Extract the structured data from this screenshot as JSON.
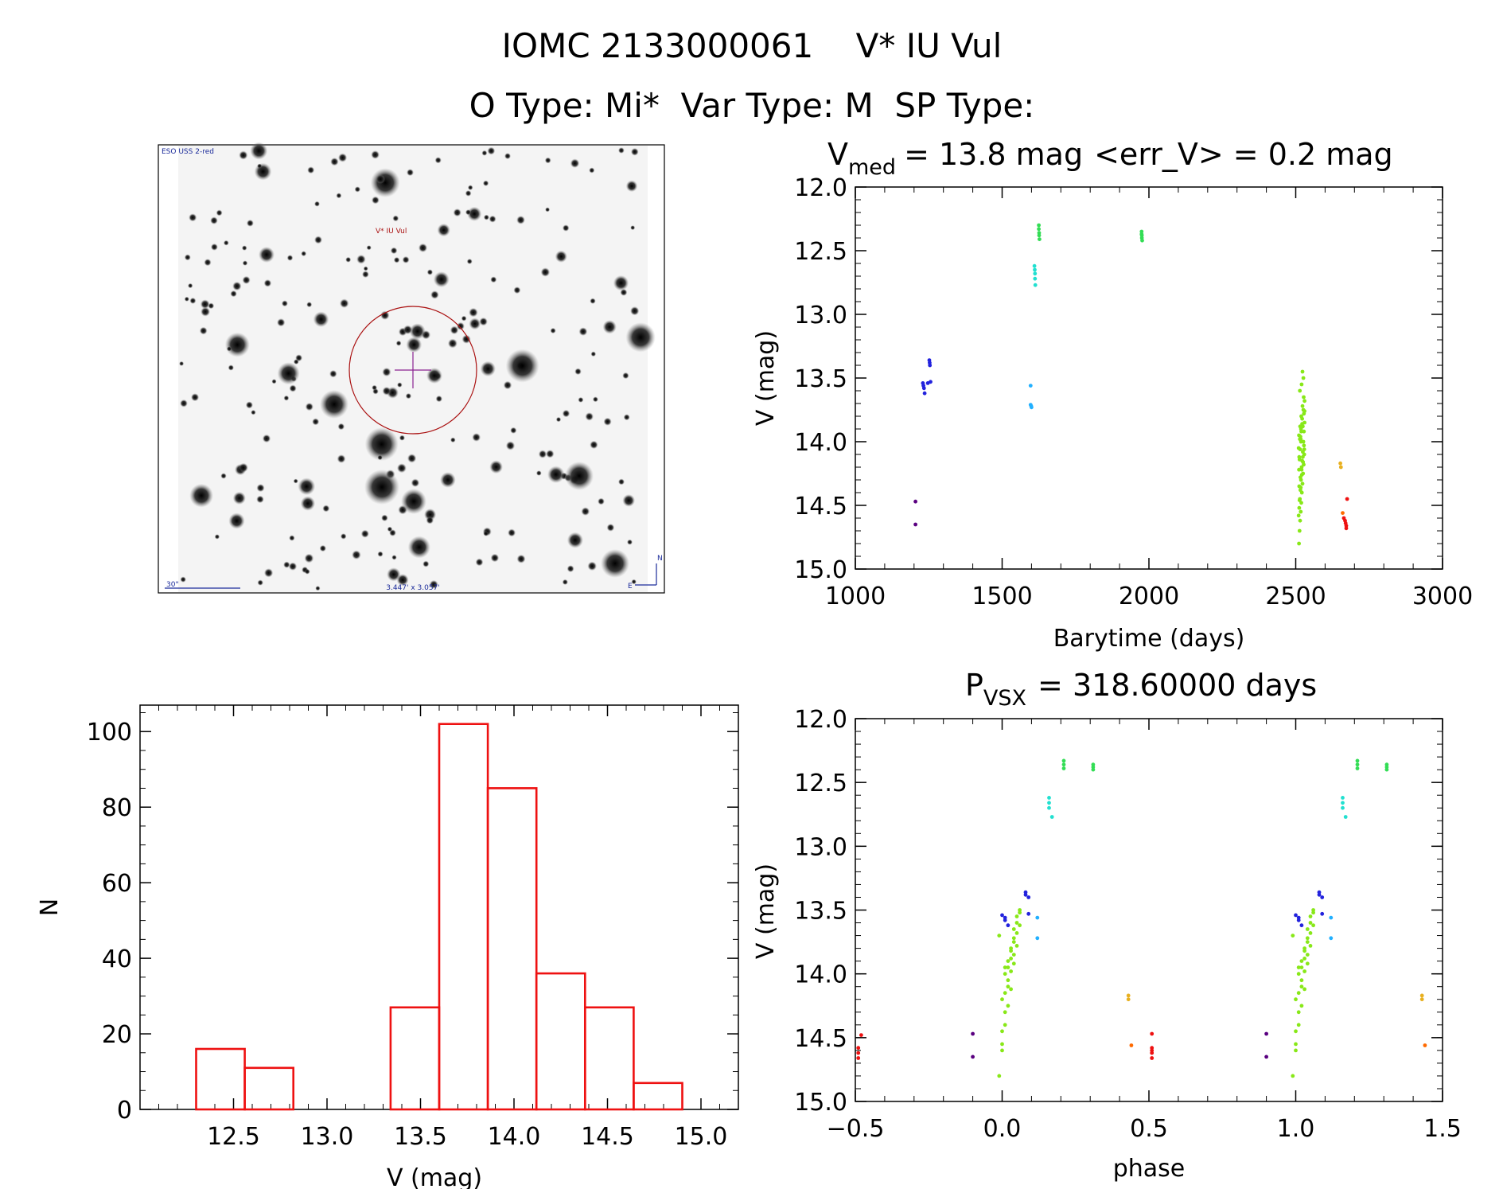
{
  "header": {
    "line1": "IOMC 2133000061    V* IU Vul",
    "line2": "O Type: Mi*  Var Type: M  SP Type:"
  },
  "finder": {
    "survey_label": "ESO USS 2-red",
    "target_label": "V* IU Vul",
    "scale_label": "30\"",
    "fov_label": "3.447' x 3.057'",
    "north_label": "N",
    "east_label": "E"
  },
  "chart_data": [
    {
      "id": "light-curve",
      "type": "scatter",
      "title": "<err_V> = 0.2 mag",
      "title_parts": {
        "symbol": "V",
        "subscript": "med",
        "value": "= 13.8 mag"
      },
      "xlabel": "Barytime (days)",
      "ylabel": "V (mag)",
      "xlim": [
        1000,
        3000
      ],
      "ylim": [
        15.0,
        12.0
      ],
      "y_inverted": true,
      "xticks": [
        1000,
        1500,
        2000,
        2500,
        3000
      ],
      "xtick_labels": [
        "1000",
        "1500",
        "2000",
        "2500",
        "3000"
      ],
      "yticks": [
        12.0,
        12.5,
        13.0,
        13.5,
        14.0,
        14.5,
        15.0
      ],
      "ytick_labels": [
        "12.0",
        "12.5",
        "13.0",
        "13.5",
        "14.0",
        "14.5",
        "15.0"
      ],
      "series": [
        {
          "color": "#5a0080",
          "x": [
            1205,
            1205
          ],
          "y": [
            14.47,
            14.65
          ]
        },
        {
          "color": "#2222dd",
          "x": [
            1230,
            1232,
            1234,
            1236,
            1247,
            1252,
            1253,
            1254,
            1256
          ],
          "y": [
            13.54,
            13.56,
            13.58,
            13.62,
            13.54,
            13.36,
            13.38,
            13.4,
            13.53
          ]
        },
        {
          "color": "#22b0ff",
          "x": [
            1597,
            1597,
            1599,
            1600
          ],
          "y": [
            13.56,
            13.71,
            13.72,
            13.73
          ]
        },
        {
          "color": "#22e0d0",
          "x": [
            1610,
            1611,
            1612,
            1612,
            1613
          ],
          "y": [
            12.62,
            12.65,
            12.68,
            12.72,
            12.77
          ]
        },
        {
          "color": "#33dd55",
          "x": [
            1625,
            1625,
            1626,
            1626,
            1627,
            1975,
            1975,
            1976,
            1976,
            1977
          ],
          "y": [
            12.3,
            12.33,
            12.36,
            12.38,
            12.41,
            12.35,
            12.37,
            12.38,
            12.4,
            12.42
          ]
        },
        {
          "color": "#88e818",
          "x": [
            2510,
            2512,
            2514,
            2516,
            2518,
            2520,
            2522,
            2524,
            2526,
            2528,
            2530,
            2511,
            2513,
            2515,
            2517,
            2519,
            2521,
            2523,
            2525,
            2527,
            2529,
            2510,
            2514,
            2518,
            2522,
            2526,
            2530,
            2512,
            2516,
            2520,
            2524,
            2528,
            2511,
            2515,
            2519,
            2523,
            2527,
            2513,
            2517,
            2521,
            2525,
            2529,
            2512,
            2518,
            2524,
            2530,
            2514,
            2520,
            2526,
            2516,
            2522,
            2528,
            2511,
            2513,
            2515,
            2517,
            2519,
            2523
          ],
          "y": [
            14.58,
            14.52,
            14.45,
            14.38,
            14.3,
            14.22,
            14.15,
            14.08,
            14.0,
            13.92,
            13.85,
            14.8,
            14.7,
            14.62,
            14.55,
            14.48,
            14.4,
            14.33,
            14.25,
            14.18,
            14.1,
            14.05,
            13.98,
            13.9,
            13.82,
            13.75,
            13.68,
            14.35,
            14.28,
            14.2,
            14.12,
            14.03,
            13.95,
            13.88,
            13.8,
            13.72,
            13.65,
            14.46,
            14.36,
            14.26,
            14.16,
            14.06,
            14.12,
            14.0,
            13.88,
            13.76,
            13.6,
            13.55,
            13.5,
            13.96,
            13.86,
            13.78,
            14.22,
            14.14,
            14.06,
            13.98,
            13.92,
            13.45
          ]
        },
        {
          "color": "#e8b020",
          "x": [
            2652,
            2654
          ],
          "y": [
            14.17,
            14.2
          ]
        },
        {
          "color": "#ff6a00",
          "x": [
            2660
          ],
          "y": [
            14.56
          ]
        },
        {
          "color": "#ee1111",
          "x": [
            2664,
            2668,
            2670,
            2672,
            2672,
            2675
          ],
          "y": [
            14.6,
            14.62,
            14.64,
            14.66,
            14.68,
            14.45
          ]
        }
      ]
    },
    {
      "id": "phased-curve",
      "type": "scatter",
      "title": "= 318.60000 days",
      "title_parts": {
        "symbol": "P",
        "subscript": "VSX"
      },
      "xlabel": "phase",
      "ylabel": "V (mag)",
      "xlim": [
        -0.5,
        1.5
      ],
      "ylim": [
        15.0,
        12.0
      ],
      "y_inverted": true,
      "xticks": [
        -0.5,
        0.0,
        0.5,
        1.0,
        1.5
      ],
      "xtick_labels": [
        "−0.5",
        "0.0",
        "0.5",
        "1.0",
        "1.5"
      ],
      "yticks": [
        12.0,
        12.5,
        13.0,
        13.5,
        14.0,
        14.5,
        15.0
      ],
      "ytick_labels": [
        "12.0",
        "12.5",
        "13.0",
        "13.5",
        "14.0",
        "14.5",
        "15.0"
      ],
      "series": [
        {
          "color": "#5a0080",
          "x": [
            -0.1,
            -0.1,
            0.9,
            0.9
          ],
          "y": [
            14.47,
            14.65,
            14.47,
            14.65
          ]
        },
        {
          "color": "#2222dd",
          "x": [
            0.0,
            0.01,
            0.01,
            0.02,
            0.08,
            0.08,
            0.09,
            0.09,
            1.0,
            1.01,
            1.01,
            1.02,
            1.08,
            1.08,
            1.09,
            1.09
          ],
          "y": [
            13.54,
            13.56,
            13.58,
            13.62,
            13.36,
            13.38,
            13.4,
            13.53,
            13.54,
            13.56,
            13.58,
            13.62,
            13.36,
            13.38,
            13.4,
            13.53
          ]
        },
        {
          "color": "#22b0ff",
          "x": [
            0.12,
            0.12,
            1.12,
            1.12
          ],
          "y": [
            13.56,
            13.72,
            13.56,
            13.72
          ]
        },
        {
          "color": "#22e0d0",
          "x": [
            0.16,
            0.16,
            0.16,
            0.17,
            1.16,
            1.16,
            1.16,
            1.17
          ],
          "y": [
            12.62,
            12.66,
            12.7,
            12.77,
            12.62,
            12.66,
            12.7,
            12.77
          ]
        },
        {
          "color": "#33dd55",
          "x": [
            0.21,
            0.21,
            0.21,
            0.31,
            0.31,
            0.31,
            1.21,
            1.21,
            1.21,
            1.31,
            1.31,
            1.31
          ],
          "y": [
            12.33,
            12.36,
            12.39,
            12.36,
            12.38,
            12.4,
            12.33,
            12.36,
            12.39,
            12.36,
            12.38,
            12.4
          ]
        },
        {
          "color": "#88e818",
          "x": [
            -0.01,
            0.0,
            0.0,
            0.01,
            0.01,
            0.02,
            0.02,
            0.03,
            0.03,
            0.04,
            0.04,
            0.05,
            0.05,
            0.06,
            0.06,
            0.0,
            0.01,
            0.02,
            0.03,
            0.04,
            0.05,
            0.01,
            0.02,
            0.03,
            0.04,
            0.0,
            0.02,
            0.04,
            0.06,
            -0.01,
            0.01,
            0.03,
            0.05,
            0.99,
            1.0,
            1.0,
            1.01,
            1.01,
            1.02,
            1.02,
            1.03,
            1.03,
            1.04,
            1.04,
            1.05,
            1.05,
            1.06,
            1.06,
            1.0,
            1.01,
            1.02,
            1.03,
            1.04,
            1.05,
            1.01,
            1.02,
            1.03,
            1.04,
            1.0,
            1.02,
            1.04,
            1.06,
            0.99,
            1.01,
            1.03,
            1.05
          ],
          "y": [
            14.8,
            14.6,
            14.45,
            14.3,
            14.15,
            14.05,
            13.95,
            13.88,
            13.8,
            13.72,
            13.65,
            13.6,
            13.55,
            13.52,
            13.5,
            14.2,
            14.0,
            13.9,
            13.82,
            13.75,
            13.68,
            14.4,
            14.1,
            13.98,
            13.85,
            14.55,
            14.25,
            13.92,
            13.62,
            13.7,
            13.95,
            14.12,
            13.78,
            14.8,
            14.6,
            14.45,
            14.3,
            14.15,
            14.05,
            13.95,
            13.88,
            13.8,
            13.72,
            13.65,
            13.6,
            13.55,
            13.52,
            13.5,
            14.2,
            14.0,
            13.9,
            13.82,
            13.75,
            13.68,
            14.4,
            14.1,
            13.98,
            13.85,
            14.55,
            14.25,
            13.92,
            13.62,
            13.7,
            13.95,
            14.12,
            13.78
          ]
        },
        {
          "color": "#e8b020",
          "x": [
            0.43,
            0.43,
            1.43,
            1.43
          ],
          "y": [
            14.17,
            14.2,
            14.17,
            14.2
          ]
        },
        {
          "color": "#ff6a00",
          "x": [
            0.44,
            1.44
          ],
          "y": [
            14.56,
            14.56
          ]
        },
        {
          "color": "#ee1111",
          "x": [
            -0.49,
            -0.49,
            -0.49,
            -0.48,
            0.51,
            0.51,
            0.51,
            0.51,
            0.51
          ],
          "y": [
            14.58,
            14.62,
            14.66,
            14.48,
            14.58,
            14.6,
            14.62,
            14.66,
            14.47
          ]
        }
      ]
    },
    {
      "id": "histogram",
      "type": "bar",
      "title": "",
      "xlabel": "V (mag)",
      "ylabel": "N",
      "xlim": [
        12.0,
        15.2
      ],
      "ylim": [
        0,
        107
      ],
      "xticks": [
        12.5,
        13.0,
        13.5,
        14.0,
        14.5,
        15.0
      ],
      "xtick_labels": [
        "12.5",
        "13.0",
        "13.5",
        "14.0",
        "14.5",
        "15.0"
      ],
      "yticks": [
        0,
        20,
        40,
        60,
        80,
        100
      ],
      "ytick_labels": [
        "0",
        "20",
        "40",
        "60",
        "80",
        "100"
      ],
      "bin_edges": [
        12.3,
        12.56,
        12.82,
        13.08,
        13.34,
        13.6,
        13.86,
        14.12,
        14.38,
        14.64,
        14.9
      ],
      "values": [
        16,
        11,
        0,
        0,
        27,
        102,
        85,
        36,
        27,
        7
      ],
      "color": "#ee1111"
    }
  ]
}
